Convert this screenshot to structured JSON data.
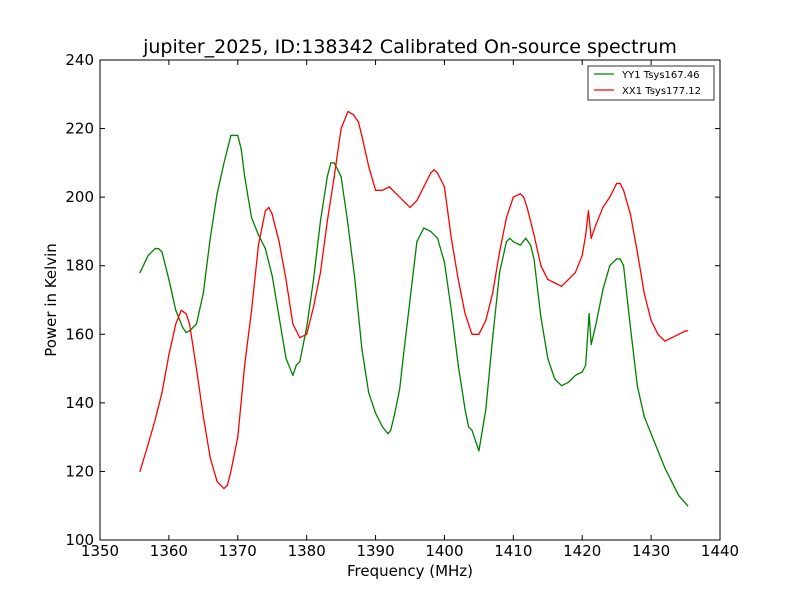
{
  "chart_data": {
    "type": "line",
    "title": "jupiter_2025, ID:138342 Calibrated On-source spectrum",
    "xlabel": "Frequency (MHz)",
    "ylabel": "Power in Kelvin",
    "xlim": [
      1350,
      1440
    ],
    "ylim": [
      100,
      240
    ],
    "xticks": [
      1350,
      1360,
      1370,
      1380,
      1390,
      1400,
      1410,
      1420,
      1430,
      1440
    ],
    "yticks": [
      100,
      120,
      140,
      160,
      180,
      200,
      220,
      240
    ],
    "grid": false,
    "legend": "top-right",
    "series": [
      {
        "name": "YY1 Tsys167.46",
        "color": "#008000",
        "x": [
          1355.8,
          1357,
          1358,
          1358.5,
          1359,
          1360,
          1361,
          1362,
          1362.5,
          1363,
          1364,
          1365,
          1366,
          1367,
          1368,
          1369,
          1370,
          1370.5,
          1371,
          1372,
          1373,
          1374,
          1375,
          1376,
          1377,
          1378,
          1378.5,
          1379,
          1380,
          1381,
          1382,
          1383,
          1383.5,
          1384,
          1385,
          1386,
          1387,
          1388,
          1389,
          1390,
          1391,
          1391.8,
          1392.2,
          1392.8,
          1393.5,
          1394,
          1395,
          1396,
          1397,
          1398,
          1399,
          1400,
          1401,
          1402,
          1403,
          1403.5,
          1404,
          1405,
          1406,
          1407,
          1408,
          1409,
          1409.5,
          1410,
          1411,
          1411.8,
          1412.5,
          1413,
          1414,
          1415,
          1416,
          1417,
          1418,
          1419,
          1420,
          1420.5,
          1421,
          1421.3,
          1422,
          1423,
          1424,
          1425,
          1425.5,
          1426,
          1427,
          1428,
          1429,
          1430,
          1431,
          1432,
          1433,
          1434,
          1435.3
        ],
        "y": [
          178,
          183,
          185,
          185,
          184,
          176,
          167,
          162,
          160.5,
          161,
          163,
          172,
          188,
          201,
          210,
          218,
          218,
          214,
          206,
          194,
          189,
          185,
          177,
          165,
          153,
          148,
          151,
          152,
          162,
          176,
          193,
          206,
          210,
          210,
          206,
          192,
          176,
          156,
          143,
          137,
          133,
          131,
          132,
          137,
          144,
          153,
          170,
          187,
          191,
          190,
          188,
          181,
          167,
          151,
          138,
          133,
          132,
          126,
          138,
          159,
          178,
          187,
          188,
          187,
          186,
          188,
          186,
          182,
          165,
          153,
          147,
          145,
          146,
          148,
          149,
          151,
          166,
          157,
          163,
          173,
          180,
          182,
          182,
          180,
          162,
          145,
          136,
          131,
          126,
          121,
          117,
          113,
          110
        ]
      },
      {
        "name": "XX1 Tsys177.12",
        "color": "#ff0000",
        "x": [
          1355.8,
          1357,
          1358,
          1359,
          1360,
          1361,
          1361.8,
          1362.5,
          1363,
          1364,
          1365,
          1366,
          1367,
          1368,
          1368.5,
          1369,
          1370,
          1371,
          1372,
          1373,
          1374,
          1374.5,
          1375,
          1376,
          1377,
          1378,
          1379,
          1380,
          1381,
          1382,
          1383,
          1384,
          1385,
          1386,
          1386.8,
          1387.5,
          1388,
          1389,
          1390,
          1391,
          1392,
          1393,
          1394,
          1395,
          1396,
          1397,
          1398,
          1398.5,
          1399,
          1399.5,
          1400,
          1401,
          1402,
          1403,
          1404,
          1405,
          1406,
          1407,
          1408,
          1409,
          1410,
          1411,
          1411.5,
          1412,
          1413,
          1414,
          1415,
          1416,
          1417,
          1418,
          1419,
          1420,
          1420.5,
          1420.9,
          1421.3,
          1422,
          1423,
          1424,
          1425,
          1425.5,
          1426,
          1427,
          1428,
          1429,
          1430,
          1431,
          1432,
          1433,
          1434,
          1435,
          1435.3
        ],
        "y": [
          120,
          128,
          135,
          143,
          154,
          163,
          167,
          166,
          163,
          150,
          136,
          124,
          117,
          115,
          116,
          120,
          130,
          151,
          167,
          186,
          196,
          197,
          195,
          187,
          176,
          163,
          159,
          160,
          168,
          178,
          193,
          206,
          220,
          225,
          224,
          222,
          218,
          209,
          202,
          202,
          203,
          201,
          199,
          197,
          199,
          203,
          207,
          208,
          207,
          205,
          203,
          188,
          176,
          166,
          160,
          160,
          164,
          172,
          184,
          194,
          200,
          201,
          200,
          197,
          189,
          180,
          176,
          175,
          174,
          176,
          178,
          183,
          189,
          196,
          188,
          192,
          197,
          200,
          204,
          204,
          202,
          195,
          184,
          172,
          164,
          160,
          158,
          159,
          160,
          161,
          161
        ]
      }
    ]
  }
}
